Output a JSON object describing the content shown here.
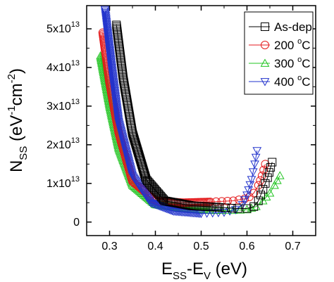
{
  "chart_data": {
    "type": "scatter",
    "xlabel": {
      "base": "E",
      "sub1": "SS",
      "mid": "-E",
      "sub2": "V",
      "unit": " (eV)"
    },
    "ylabel": {
      "base": "N",
      "sub": "SS",
      "unit_open": " (eV",
      "sup1": "-1",
      "unit_mid": "cm",
      "sup2": "-2",
      "unit_close": ")"
    },
    "xlim": [
      0.25,
      0.75
    ],
    "ylim": [
      -0.35,
      5.6
    ],
    "x_ticks": [
      {
        "value": 0.3,
        "label": "0.3"
      },
      {
        "value": 0.4,
        "label": "0.4"
      },
      {
        "value": 0.5,
        "label": "0.5"
      },
      {
        "value": 0.6,
        "label": "0.6"
      },
      {
        "value": 0.7,
        "label": "0.7"
      }
    ],
    "y_ticks": [
      {
        "value": 0,
        "mant": "0",
        "exp": ""
      },
      {
        "value": 1,
        "mant": "1x10",
        "exp": "13"
      },
      {
        "value": 2,
        "mant": "2x10",
        "exp": "13"
      },
      {
        "value": 3,
        "mant": "3x10",
        "exp": "13"
      },
      {
        "value": 4,
        "mant": "4x10",
        "exp": "13"
      },
      {
        "value": 5,
        "mant": "5x10",
        "exp": "13"
      }
    ],
    "y_multiplier": "1e13",
    "legend_position": "top-right",
    "series": [
      {
        "name": "As-dep",
        "label_base": "As-dep",
        "label_sup": "",
        "label_tail": "",
        "color": "#000000",
        "marker": "square",
        "x": [
          0.315,
          0.33,
          0.35,
          0.38,
          0.42,
          0.48,
          0.54,
          0.58,
          0.6,
          0.615,
          0.625,
          0.635,
          0.645,
          0.655
        ],
        "y": [
          5.1,
          3.7,
          2.3,
          1.1,
          0.55,
          0.42,
          0.38,
          0.35,
          0.35,
          0.4,
          0.55,
          0.85,
          1.15,
          1.55
        ]
      },
      {
        "name": "200 °C",
        "label_base": "200 ",
        "label_sup": "o",
        "label_tail": "C",
        "color": "#e41a1c",
        "marker": "circle",
        "x": [
          0.285,
          0.3,
          0.32,
          0.35,
          0.4,
          0.46,
          0.52,
          0.57,
          0.595,
          0.605,
          0.615,
          0.625,
          0.633,
          0.64
        ],
        "y": [
          4.9,
          3.6,
          2.3,
          1.05,
          0.55,
          0.5,
          0.52,
          0.55,
          0.6,
          0.65,
          0.75,
          0.95,
          1.2,
          1.5
        ]
      },
      {
        "name": "300 °C",
        "label_base": "300 ",
        "label_sup": "o",
        "label_tail": "C",
        "color": "#22c422",
        "marker": "triangle-up",
        "x": [
          0.28,
          0.3,
          0.32,
          0.35,
          0.4,
          0.46,
          0.52,
          0.57,
          0.6,
          0.62,
          0.635,
          0.65,
          0.66,
          0.672
        ],
        "y": [
          4.3,
          3.0,
          1.9,
          0.95,
          0.45,
          0.35,
          0.3,
          0.3,
          0.32,
          0.4,
          0.55,
          0.75,
          0.95,
          1.2
        ]
      },
      {
        "name": "400 °C",
        "label_base": "400 ",
        "label_sup": "o",
        "label_tail": "C",
        "color": "#2233cc",
        "marker": "triangle-down",
        "x": [
          0.29,
          0.305,
          0.32,
          0.35,
          0.39,
          0.44,
          0.5,
          0.55,
          0.575,
          0.59,
          0.6,
          0.61,
          0.617,
          0.622
        ],
        "y": [
          5.5,
          4.0,
          2.6,
          1.2,
          0.5,
          0.28,
          0.22,
          0.25,
          0.32,
          0.45,
          0.7,
          1.1,
          1.5,
          1.85
        ]
      }
    ]
  }
}
